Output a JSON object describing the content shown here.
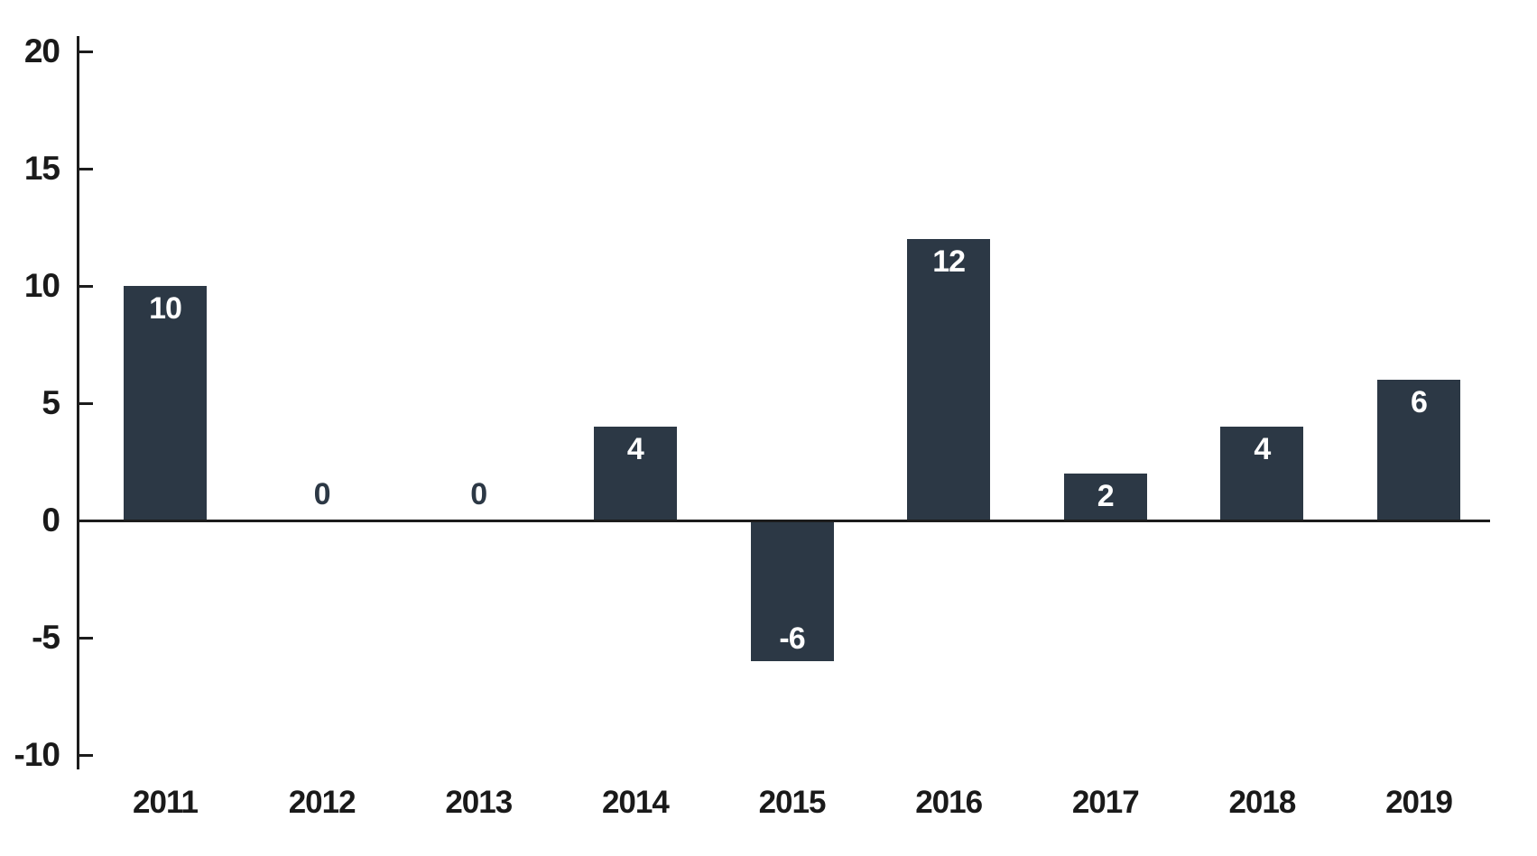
{
  "chart_data": {
    "type": "bar",
    "categories": [
      "2011",
      "2012",
      "2013",
      "2014",
      "2015",
      "2016",
      "2017",
      "2018",
      "2019"
    ],
    "values": [
      10,
      0,
      0,
      4,
      -6,
      12,
      2,
      4,
      6
    ],
    "data_labels": [
      "10",
      "0",
      "0",
      "4",
      "-6",
      "12",
      "2",
      "4",
      "6"
    ],
    "yticks": [
      20,
      15,
      10,
      5,
      0,
      -5,
      -10
    ],
    "ylim": [
      -10,
      20
    ],
    "grid": false,
    "legend": "none",
    "bar_color": "#2c3845",
    "bar_label_color": "#ffffff",
    "zero_label_color": "#2c3845",
    "axis_color": "#1c1c1c",
    "tick_text_color": "#1a1a1a",
    "background_color": "#ffffff"
  }
}
